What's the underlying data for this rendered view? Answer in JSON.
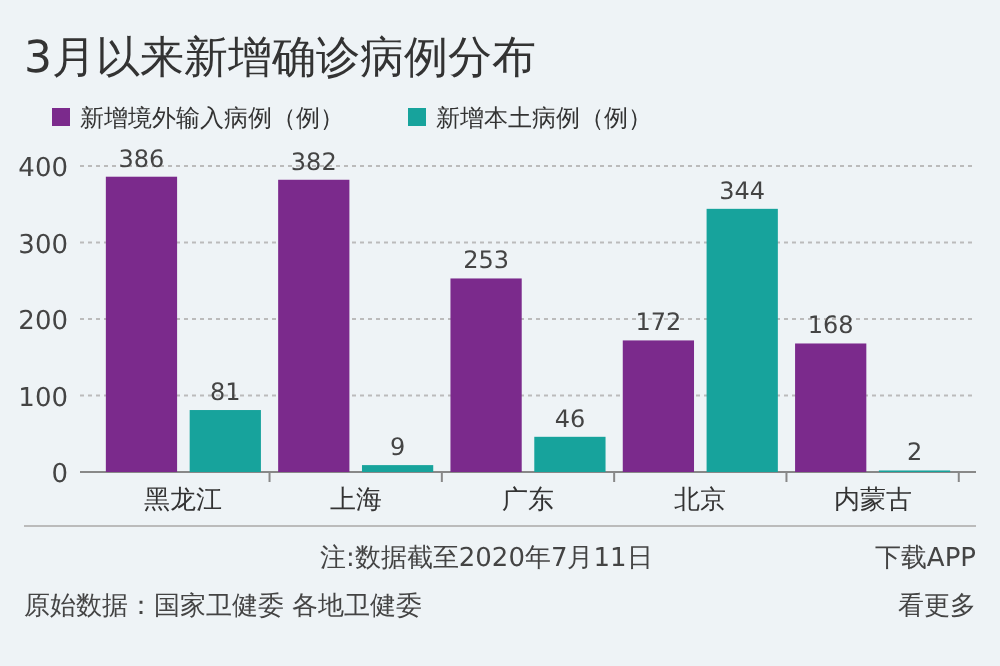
{
  "chart_data": {
    "type": "bar",
    "title": "3月以来新增确诊病例分布",
    "categories": [
      "黑龙江",
      "上海",
      "广东",
      "北京",
      "内蒙古"
    ],
    "series": [
      {
        "name": "新增境外输入病例（例）",
        "color": "#7b2a8c",
        "values": [
          386,
          382,
          253,
          172,
          168
        ]
      },
      {
        "name": "新增本土病例（例）",
        "color": "#17a39c",
        "values": [
          81,
          9,
          46,
          344,
          2
        ]
      }
    ],
    "ylim": [
      0,
      400
    ],
    "yticks": [
      0,
      100,
      200,
      300,
      400
    ],
    "grid": "y",
    "legend": "top left",
    "data_labels": true,
    "annotations": [
      "注:数据截至2020年7月11日",
      "下载APP",
      "原始数据：国家卫健委 各地卫健委",
      "看更多"
    ]
  }
}
